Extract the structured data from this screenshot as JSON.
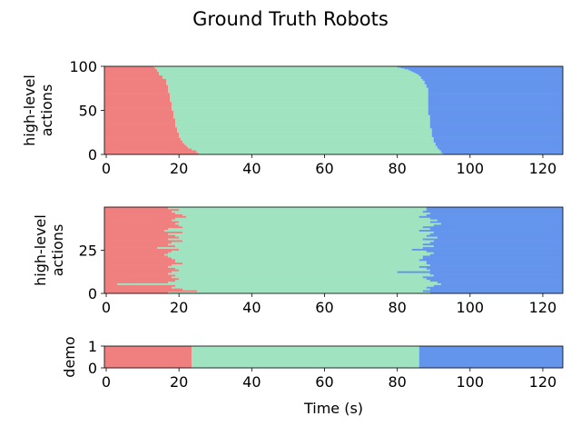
{
  "figure": {
    "title": "Ground Truth Robots",
    "colors": {
      "phase_1": "#f08080",
      "phase_2": "#a0e3c0",
      "phase_3": "#6495ed"
    }
  },
  "chart_data": [
    {
      "type": "bar",
      "orientation": "horizontal-stacked-timeline",
      "ylabel": [
        "high-level",
        "actions"
      ],
      "xlabel": "",
      "xlim": [
        -0.5,
        125.5
      ],
      "ylim": [
        0,
        100
      ],
      "xticks": [
        0,
        20,
        40,
        60,
        80,
        100,
        120
      ],
      "yticks": [
        0,
        50,
        100
      ],
      "end_time": 125.5,
      "rows_note": "100 rows, index 0 at bottom",
      "phase1_end": [
        25.5,
        25.5,
        24.8,
        24.8,
        24.8,
        23.5,
        23.5,
        22.5,
        22.5,
        22.0,
        22.0,
        21.5,
        21.5,
        21.0,
        21.0,
        21.0,
        20.5,
        20.5,
        20.5,
        20.0,
        20.0,
        20.0,
        20.0,
        20.0,
        20.0,
        19.5,
        19.5,
        19.5,
        19.5,
        19.5,
        19.5,
        19.0,
        19.0,
        19.0,
        19.0,
        19.0,
        19.0,
        19.0,
        19.0,
        19.0,
        19.0,
        18.5,
        18.5,
        18.5,
        18.5,
        18.5,
        18.5,
        18.5,
        18.5,
        18.5,
        18.0,
        18.0,
        18.0,
        18.0,
        18.0,
        18.0,
        18.0,
        18.0,
        18.0,
        18.0,
        17.5,
        17.5,
        17.5,
        17.5,
        17.5,
        17.5,
        17.5,
        17.5,
        17.5,
        17.5,
        17.0,
        17.0,
        17.0,
        17.0,
        17.0,
        17.0,
        17.0,
        17.0,
        17.0,
        16.5,
        16.5,
        16.5,
        16.5,
        16.5,
        16.5,
        16.5,
        15.5,
        15.5,
        15.5,
        15.5,
        14.5,
        14.5,
        14.5,
        14.5,
        14.0,
        14.0,
        14.0,
        13.5,
        13.5,
        13.0
      ],
      "phase2_end": [
        92.5,
        92.5,
        92.0,
        92.0,
        92.0,
        91.5,
        91.5,
        91.0,
        91.0,
        91.0,
        90.5,
        90.5,
        90.5,
        90.5,
        90.0,
        90.0,
        90.0,
        90.0,
        90.0,
        90.0,
        89.5,
        89.5,
        89.5,
        89.5,
        89.5,
        89.5,
        89.5,
        89.5,
        89.5,
        89.5,
        89.0,
        89.0,
        89.0,
        89.0,
        89.0,
        89.0,
        89.0,
        89.0,
        89.0,
        89.0,
        89.0,
        89.0,
        89.0,
        89.0,
        89.0,
        88.5,
        88.5,
        88.5,
        88.5,
        88.5,
        88.5,
        88.5,
        88.5,
        88.5,
        88.5,
        88.5,
        88.5,
        88.5,
        88.5,
        88.5,
        88.5,
        88.5,
        88.5,
        88.5,
        88.5,
        88.5,
        88.5,
        88.5,
        88.5,
        88.5,
        88.5,
        88.5,
        88.5,
        88.5,
        88.5,
        88.5,
        88.0,
        88.0,
        88.0,
        88.0,
        87.5,
        87.5,
        87.5,
        87.5,
        87.0,
        87.0,
        86.5,
        86.5,
        86.5,
        86.0,
        86.0,
        85.5,
        85.0,
        84.5,
        84.0,
        83.5,
        83.0,
        82.0,
        81.0,
        80.0
      ]
    },
    {
      "type": "bar",
      "orientation": "horizontal-stacked-timeline",
      "ylabel": [
        "high-level",
        "actions"
      ],
      "xlabel": "",
      "xlim": [
        -0.5,
        125.5
      ],
      "ylim": [
        0,
        50
      ],
      "xticks": [
        0,
        20,
        40,
        60,
        80,
        100,
        120
      ],
      "yticks": [
        0,
        25
      ],
      "end_time": 125.5,
      "rows_note": "50 rows, index 0 at bottom",
      "phase1_end": [
        17,
        25,
        21,
        18,
        19,
        3,
        17,
        19,
        20,
        18,
        19,
        17,
        18,
        20,
        19,
        17,
        18,
        21,
        19,
        19,
        18,
        17,
        16,
        17,
        18,
        20,
        14,
        19,
        17,
        18,
        21,
        17,
        20,
        19,
        17,
        21,
        16,
        17,
        21,
        20,
        19,
        20,
        18,
        19,
        22,
        21,
        19,
        18,
        20,
        17
      ],
      "phase2_end": [
        89,
        87,
        89,
        88,
        90,
        92,
        91,
        89,
        88,
        87,
        90,
        89,
        80,
        89,
        88,
        86,
        89,
        88,
        88,
        86,
        87,
        87,
        89,
        90,
        88,
        84,
        87,
        90,
        87,
        89,
        90,
        87,
        91,
        88,
        89,
        90,
        86,
        89,
        87,
        90,
        92,
        89,
        91,
        89,
        86,
        88,
        89,
        87,
        88,
        88
      ]
    },
    {
      "type": "bar",
      "orientation": "horizontal-stacked-timeline",
      "ylabel": [
        "demo"
      ],
      "xlabel": "Time (s)",
      "xlim": [
        -0.5,
        125.5
      ],
      "ylim": [
        0,
        1
      ],
      "xticks": [
        0,
        20,
        40,
        60,
        80,
        100,
        120
      ],
      "yticks": [
        0,
        1
      ],
      "end_time": 125.5,
      "rows_note": "1 row",
      "phase1_end": [
        23.5
      ],
      "phase2_end": [
        86
      ]
    }
  ]
}
